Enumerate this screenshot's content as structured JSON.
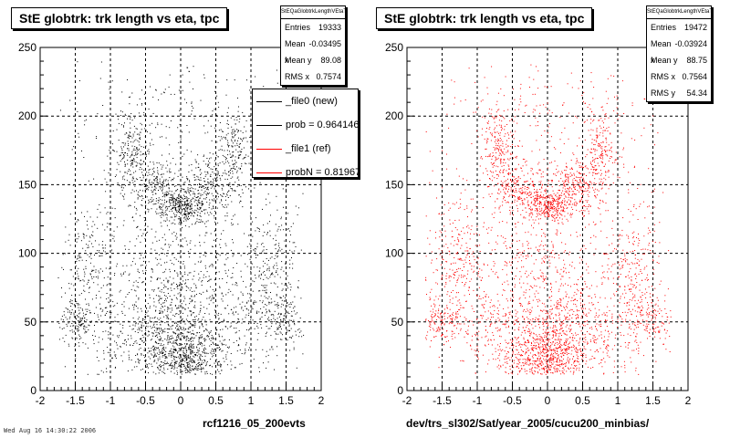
{
  "chart_data": [
    {
      "type": "scatter",
      "title": "StE globtrk: trk length vs eta, tpc",
      "xlim": [
        -2,
        2
      ],
      "ylim": [
        0,
        250
      ],
      "xticks": [
        "-2",
        "-1.5",
        "-1",
        "-0.5",
        "0",
        "0.5",
        "1",
        "1.5",
        "2"
      ],
      "yticks": [
        "0",
        "50",
        "100",
        "150",
        "200",
        "250"
      ],
      "grid": true,
      "marker_color": "#000000",
      "xlabel": "rcf1216_05_200evts",
      "stats": {
        "name": "StEQaGlobtrkLengthVEtaT",
        "rows": [
          {
            "label": "Entries",
            "value": "19333"
          },
          {
            "label": "Mean x",
            "value": "-0.03495"
          },
          {
            "label": "Mean y",
            "value": "89.08"
          },
          {
            "label": "RMS x",
            "value": "0.7574"
          }
        ]
      },
      "legend": {
        "position": "top-right",
        "entries": [
          {
            "label": "_file0 (new)",
            "color": "#000000"
          },
          {
            "label": "prob = 0.964146",
            "color": "#000000"
          },
          {
            "label": "_file1 (ref)",
            "color": "#ff0000"
          },
          {
            "label": "probN = 0.819675",
            "color": "#ff0000"
          }
        ]
      },
      "density_clusters": [
        {
          "x": 0.0,
          "y": 25,
          "sx": 0.3,
          "sy": 12,
          "w": 14
        },
        {
          "x": 0.0,
          "y": 45,
          "sx": 0.65,
          "sy": 25,
          "w": 22
        },
        {
          "x": 0.0,
          "y": 100,
          "sx": 0.75,
          "sy": 45,
          "w": 14
        },
        {
          "x": 0.0,
          "y": 135,
          "sx": 0.2,
          "sy": 6,
          "w": 8
        },
        {
          "x": -0.4,
          "y": 150,
          "sx": 0.2,
          "sy": 10,
          "w": 5
        },
        {
          "x": 0.4,
          "y": 150,
          "sx": 0.2,
          "sy": 10,
          "w": 5
        },
        {
          "x": -0.7,
          "y": 175,
          "sx": 0.12,
          "sy": 14,
          "w": 4
        },
        {
          "x": 0.75,
          "y": 175,
          "sx": 0.12,
          "sy": 14,
          "w": 4
        },
        {
          "x": -1.3,
          "y": 90,
          "sx": 0.2,
          "sy": 25,
          "w": 5
        },
        {
          "x": 1.25,
          "y": 90,
          "sx": 0.2,
          "sy": 25,
          "w": 5
        },
        {
          "x": -1.5,
          "y": 50,
          "sx": 0.15,
          "sy": 8,
          "w": 3
        },
        {
          "x": 1.45,
          "y": 50,
          "sx": 0.15,
          "sy": 8,
          "w": 3
        },
        {
          "x": 0.0,
          "y": 205,
          "sx": 0.9,
          "sy": 20,
          "w": 4
        }
      ]
    },
    {
      "type": "scatter",
      "title": "StE globtrk: trk length vs eta, tpc",
      "xlim": [
        -2,
        2
      ],
      "ylim": [
        0,
        250
      ],
      "xticks": [
        "-2",
        "-1.5",
        "-1",
        "-0.5",
        "0",
        "0.5",
        "1",
        "1.5",
        "2"
      ],
      "yticks": [
        "0",
        "50",
        "100",
        "150",
        "200",
        "250"
      ],
      "grid": true,
      "marker_color": "#ff0000",
      "xlabel": "dev/trs_sl302/Sat/year_2005/cucu200_minbias/",
      "stats": {
        "name": "StEQaGlobtrkLengthVEtaT",
        "rows": [
          {
            "label": "Entries",
            "value": "19472"
          },
          {
            "label": "Mean x",
            "value": "-0.03924"
          },
          {
            "label": "Mean y",
            "value": "88.75"
          },
          {
            "label": "RMS x",
            "value": "0.7564"
          },
          {
            "label": "RMS y",
            "value": "54.34"
          }
        ]
      }
    }
  ],
  "footer_text": "Wed Aug 16 14:30:22 2006"
}
